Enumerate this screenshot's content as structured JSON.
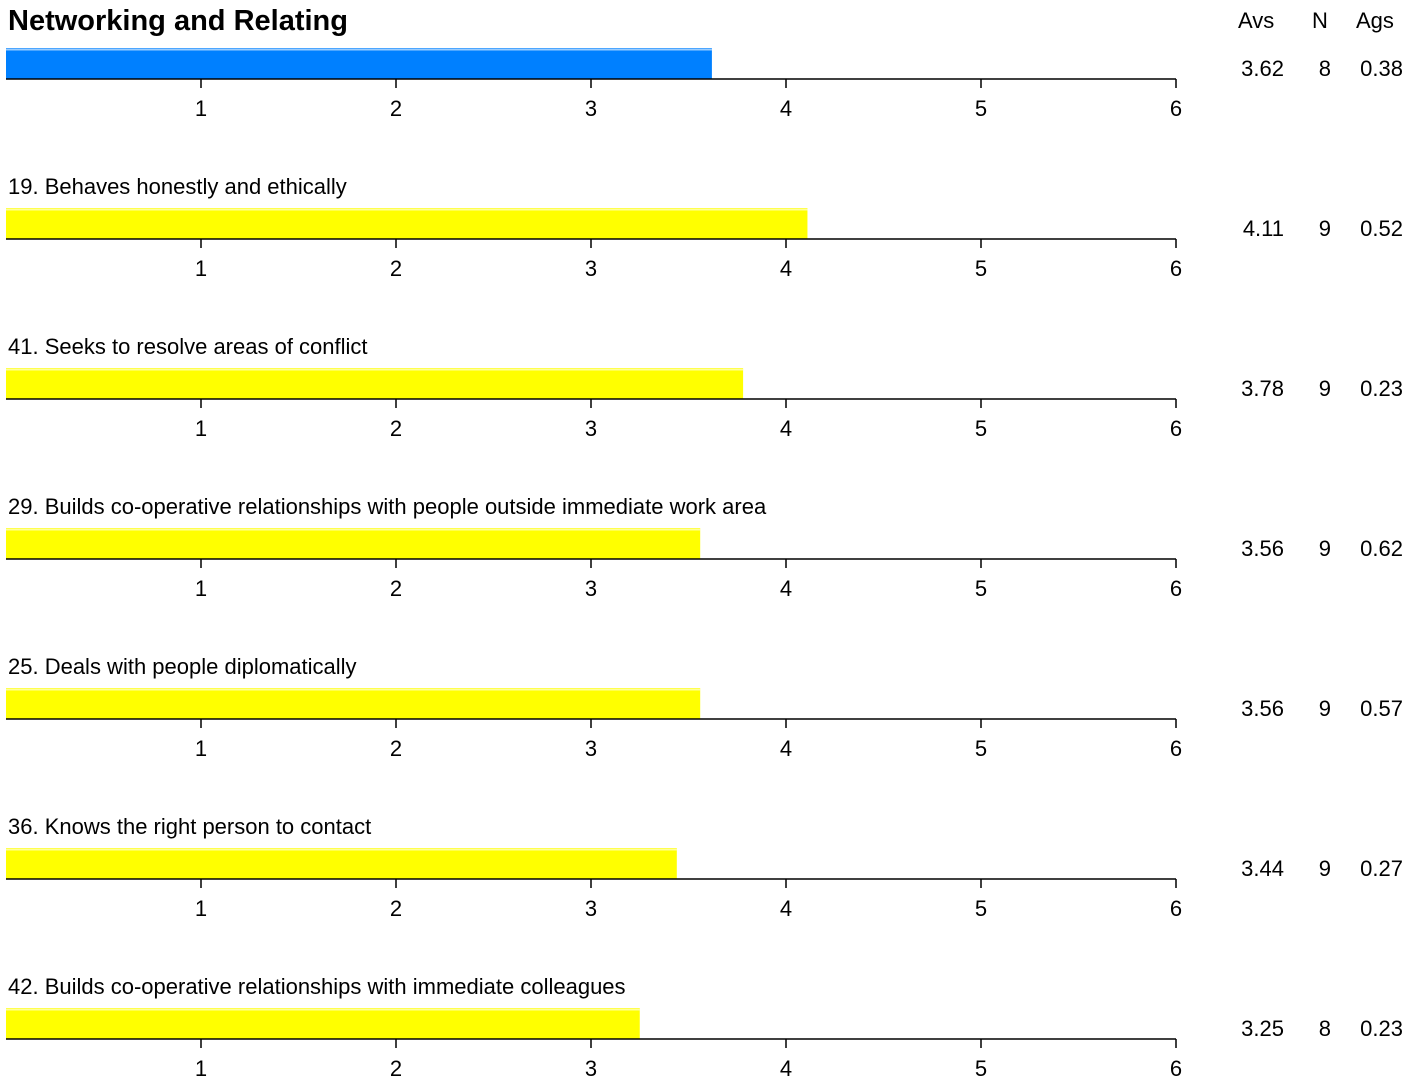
{
  "title": "Networking and Relating",
  "columns": {
    "avs": "Avs",
    "n": "N",
    "ags": "Ags"
  },
  "colors": {
    "summary_bar": "#0080ff",
    "item_bar": "#ffff00",
    "axis": "#000000"
  },
  "chart_data": {
    "type": "bar",
    "orientation": "horizontal",
    "xlim": [
      0,
      6
    ],
    "ticks": [
      1,
      2,
      3,
      4,
      5,
      6
    ],
    "rows": [
      {
        "label": "",
        "value": 3.62,
        "avs": "3.62",
        "n": "8",
        "ags": "0.38",
        "color": "#0080ff"
      },
      {
        "label": "19.  Behaves honestly and ethically",
        "value": 4.11,
        "avs": "4.11",
        "n": "9",
        "ags": "0.52",
        "color": "#ffff00"
      },
      {
        "label": "41.  Seeks to resolve areas of conflict",
        "value": 3.78,
        "avs": "3.78",
        "n": "9",
        "ags": "0.23",
        "color": "#ffff00"
      },
      {
        "label": "29.  Builds co-operative relationships with people outside immediate work area",
        "value": 3.56,
        "avs": "3.56",
        "n": "9",
        "ags": "0.62",
        "color": "#ffff00"
      },
      {
        "label": "25.  Deals with people diplomatically",
        "value": 3.56,
        "avs": "3.56",
        "n": "9",
        "ags": "0.57",
        "color": "#ffff00"
      },
      {
        "label": "36.  Knows the right person to contact",
        "value": 3.44,
        "avs": "3.44",
        "n": "9",
        "ags": "0.27",
        "color": "#ffff00"
      },
      {
        "label": "42.  Builds co-operative relationships with immediate colleagues",
        "value": 3.25,
        "avs": "3.25",
        "n": "8",
        "ags": "0.23",
        "color": "#ffff00"
      }
    ]
  }
}
